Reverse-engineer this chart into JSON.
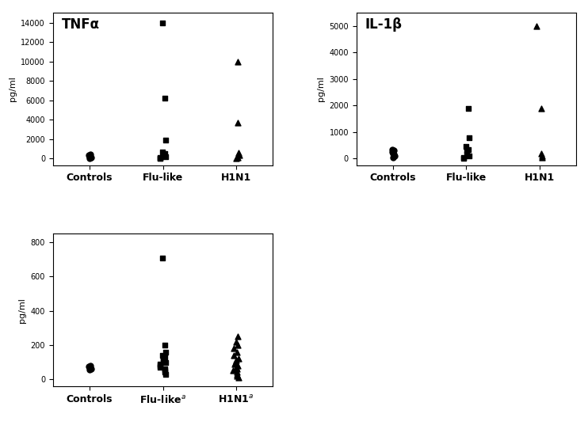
{
  "TNFa": {
    "title": "TNFα",
    "ylabel": "pg/ml",
    "ylim": [
      -700,
      15000
    ],
    "yticks": [
      0,
      2000,
      4000,
      6000,
      8000,
      10000,
      12000,
      14000
    ],
    "controls": {
      "marker": "o",
      "values": [
        50,
        80,
        120,
        200,
        300,
        400
      ]
    },
    "flu_like": {
      "marker": "s",
      "values": [
        14000,
        6200,
        1900,
        700,
        500,
        400,
        300,
        200,
        100,
        50,
        30
      ]
    },
    "h1n1": {
      "marker": "^",
      "values": [
        10000,
        3700,
        600,
        300,
        100,
        50
      ]
    }
  },
  "IL1b": {
    "title": "IL-1β",
    "ylabel": "pg/ml",
    "ylim": [
      -250,
      5500
    ],
    "yticks": [
      0,
      1000,
      2000,
      3000,
      4000,
      5000
    ],
    "controls": {
      "marker": "o",
      "values": [
        50,
        100,
        150,
        200,
        250,
        300,
        350
      ]
    },
    "flu_like": {
      "marker": "s",
      "values": [
        1900,
        800,
        450,
        350,
        300,
        150,
        100,
        50,
        20
      ]
    },
    "h1n1": {
      "marker": "^",
      "values": [
        5000,
        1900,
        200,
        100,
        50
      ]
    }
  },
  "IL6": {
    "title": "",
    "ylabel": "pg/ml",
    "ylim": [
      -40,
      850
    ],
    "yticks": [
      0,
      200,
      400,
      600,
      800
    ],
    "controls": {
      "marker": "o",
      "values": [
        55,
        60,
        65,
        70,
        75,
        80
      ]
    },
    "flu_like": {
      "marker": "s",
      "values": [
        710,
        200,
        160,
        140,
        130,
        120,
        110,
        100,
        90,
        80,
        70,
        60,
        50,
        40,
        30
      ]
    },
    "h1n1": {
      "marker": "^",
      "values": [
        250,
        220,
        200,
        180,
        160,
        140,
        120,
        110,
        100,
        90,
        80,
        70,
        60,
        50,
        40,
        30,
        20,
        10
      ]
    }
  },
  "xticklabels_top": [
    "Controls",
    "Flu-like",
    "H1N1"
  ],
  "xticklabels_bottom": [
    "Controls",
    "Flu-like$^a$",
    "H1N1$^a$"
  ],
  "marker_size": 5,
  "color": "black",
  "title_fontsize": 12,
  "label_fontsize": 8,
  "tick_fontsize": 7,
  "xtick_fontsize": 9
}
